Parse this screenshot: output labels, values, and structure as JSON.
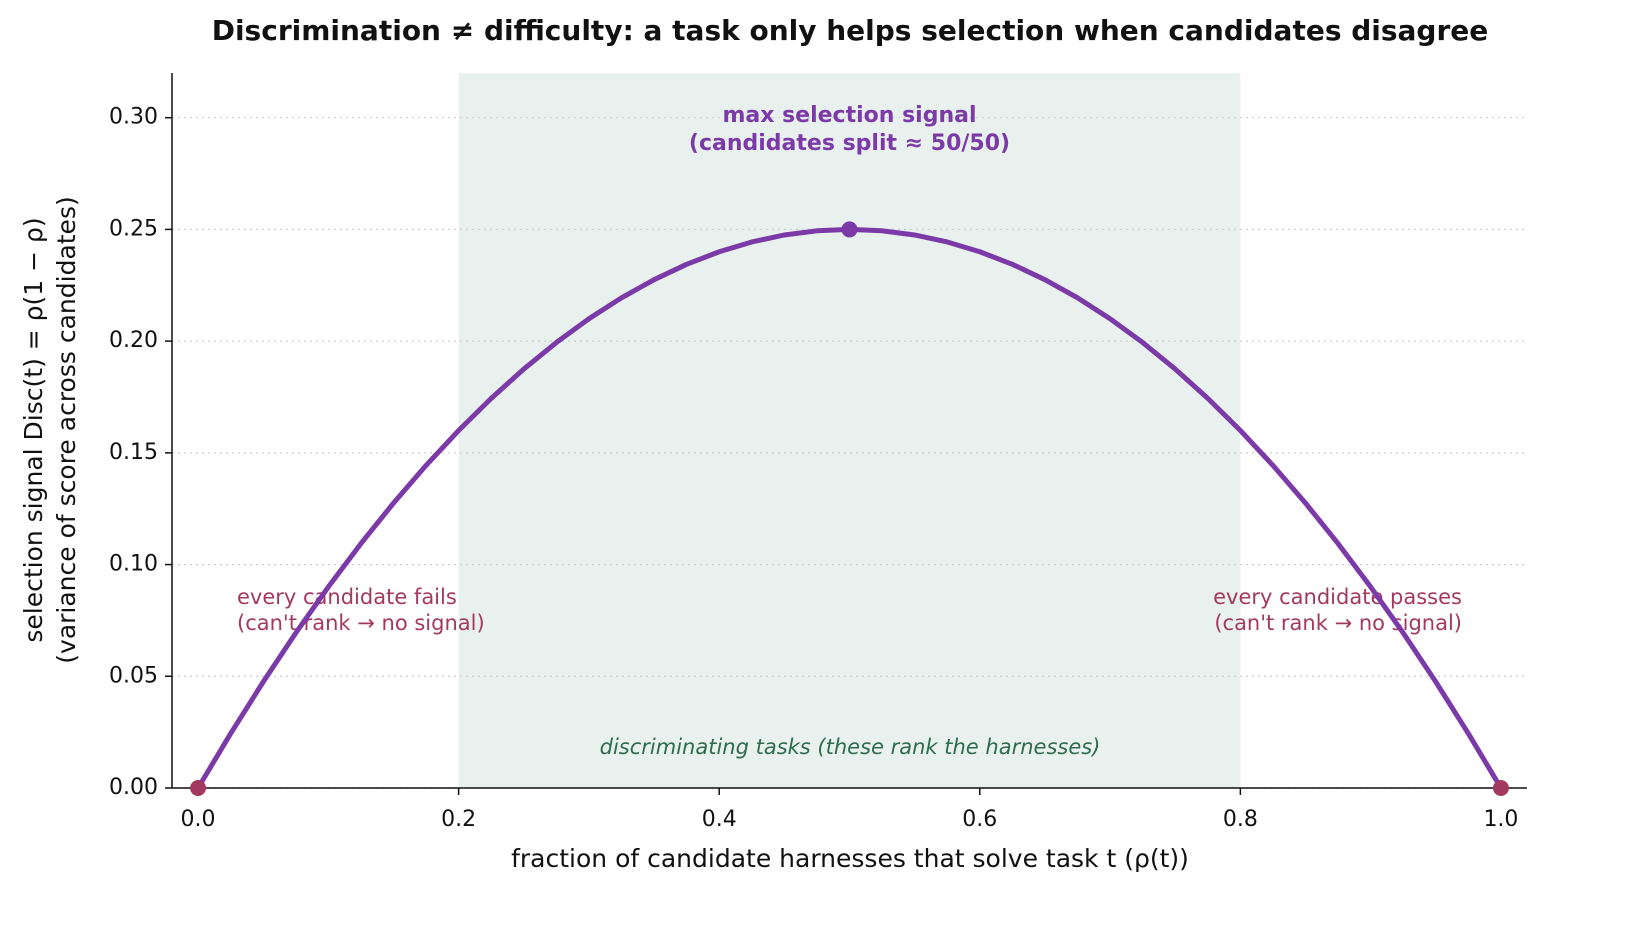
{
  "chart_data": {
    "type": "line",
    "title": "Discrimination ≠ difficulty: a task only helps selection when candidates disagree",
    "x_label": "fraction of candidate harnesses that solve task t  (ρ(t))",
    "y_label": [
      "selection signal  Disc(t) = ρ(1 − ρ)",
      "(variance of score across candidates)"
    ],
    "x": [
      0,
      0.025,
      0.05,
      0.075,
      0.1,
      0.125,
      0.15,
      0.175,
      0.2,
      0.225,
      0.25,
      0.275,
      0.3,
      0.325,
      0.35,
      0.375,
      0.4,
      0.425,
      0.45,
      0.475,
      0.5,
      0.525,
      0.55,
      0.575,
      0.6,
      0.625,
      0.65,
      0.675,
      0.7,
      0.725,
      0.75,
      0.775,
      0.8,
      0.825,
      0.85,
      0.875,
      0.9,
      0.925,
      0.95,
      0.975,
      1
    ],
    "series": [
      {
        "color": "#7b3aa8",
        "values": [
          0,
          0.024375,
          0.0475,
          0.069375,
          0.09,
          0.109375,
          0.1275,
          0.144375,
          0.16,
          0.174375,
          0.1875,
          0.199375,
          0.21,
          0.219375,
          0.2275,
          0.234375,
          0.24,
          0.244375,
          0.2475,
          0.249375,
          0.25,
          0.249375,
          0.2475,
          0.244375,
          0.24,
          0.234375,
          0.2275,
          0.219375,
          0.21,
          0.199375,
          0.1875,
          0.174375,
          0.16,
          0.144375,
          0.1275,
          0.109375,
          0.09,
          0.069375,
          0.0475,
          0.024375,
          0
        ]
      }
    ],
    "points": [
      {
        "x": 0.5,
        "y": 0.25,
        "color": "#7b3aa8"
      },
      {
        "x": 0,
        "y": 0,
        "color": "#a3395e"
      },
      {
        "x": 1,
        "y": 0,
        "color": "#a3395e"
      }
    ],
    "span": {
      "x": [
        0.2,
        0.8
      ],
      "color": "#e8f1ee"
    },
    "annotations": {
      "peak": [
        "max selection signal",
        "(candidates split ≈ 50/50)"
      ],
      "left": [
        "every candidate fails",
        "(can't rank → no signal)"
      ],
      "right": [
        "every candidate passes",
        "(can't rank → no signal)"
      ],
      "span": "discriminating tasks  (these rank the harnesses)"
    },
    "xlim": [
      -0.02,
      1.02
    ],
    "ylim": [
      0,
      0.32
    ],
    "xticks": [
      {
        "value": 0,
        "label": "0.0"
      },
      0.2,
      0.4,
      0.6,
      0.8,
      {
        "value": 1,
        "label": "1.0"
      }
    ],
    "yticks": [
      {
        "value": 0,
        "label": "0.00"
      },
      0.05,
      {
        "value": 0.1,
        "label": "0.10"
      },
      0.15,
      {
        "value": 0.2,
        "label": "0.20"
      },
      0.25,
      {
        "value": 0.3,
        "label": "0.30"
      }
    ],
    "grid": true
  }
}
